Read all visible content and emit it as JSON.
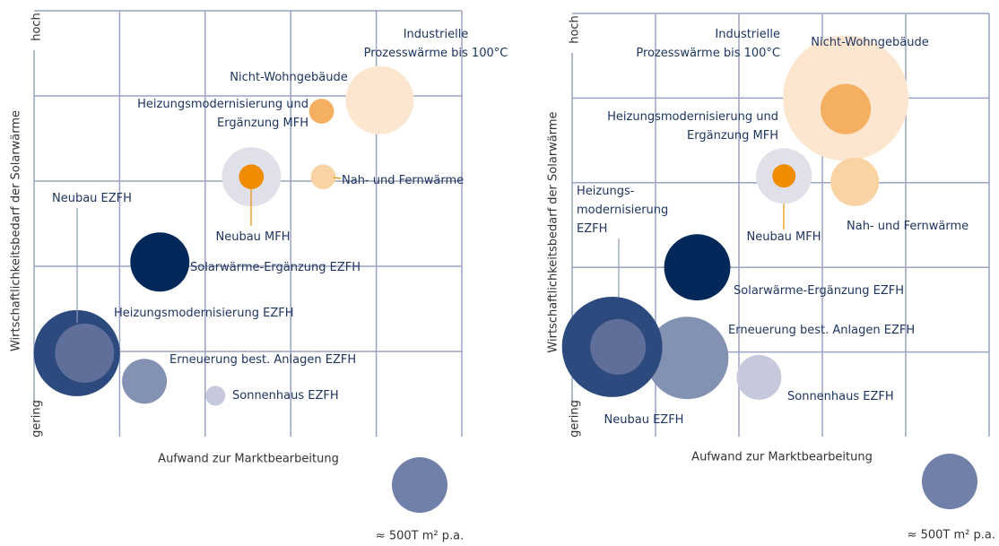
{
  "chart_data": [
    {
      "type": "bubble",
      "x_label": "Aufwand zur Marktbearbeitung",
      "y_label": "Wirtschaftlichkeitsbedarf der Solarwärme",
      "y_high": "hoch",
      "y_low": "gering",
      "xlim": [
        0,
        5
      ],
      "ylim": [
        0,
        5
      ],
      "grid": true,
      "size_legend": {
        "value": 500,
        "label": "≈ 500T m² p.a.",
        "color": "#7080a8"
      },
      "points": [
        {
          "name": "Industrielle Prozesswärme bis 100°C",
          "color": "#fde6cf",
          "x": 4.04,
          "y": 3.95,
          "size": 750
        },
        {
          "name": "Nicht-Wohngebäude",
          "color": "#f4b060",
          "x": 3.36,
          "y": 3.82,
          "size": 100
        },
        {
          "name": "Heizungsmodernisierung und Ergänzung MFH",
          "color": "#dfe0ea",
          "x": 2.54,
          "y": 3.05,
          "size": 565
        },
        {
          "name": "Neubau MFH",
          "color": "#ef8c00",
          "x": 2.54,
          "y": 3.05,
          "size": 100
        },
        {
          "name": "Nah- und Fernwärme",
          "color": "#fad3a4",
          "x": 3.38,
          "y": 3.05,
          "size": 100
        },
        {
          "name": "Solarwärme-Ergänzung EZFH",
          "color": "#002858",
          "x": 1.47,
          "y": 2.05,
          "size": 565
        },
        {
          "name": "Erneuerung best. Anlagen EZFH",
          "color": "#8391b2",
          "x": 1.29,
          "y": 0.65,
          "size": 325
        },
        {
          "name": "Sonnenhaus EZFH",
          "color": "#c6c8db",
          "x": 2.12,
          "y": 0.48,
          "size": 63
        },
        {
          "name": "Neubau EZFH",
          "color": "#2c4a7e",
          "x": 0.5,
          "y": 0.98,
          "size": 1200
        },
        {
          "name": "Heizungsmodernisierung EZFH",
          "color": "#5f6f99",
          "x": 0.59,
          "y": 0.98,
          "size": 565
        }
      ]
    },
    {
      "type": "bubble",
      "x_label": "Aufwand zur Marktbearbeitung",
      "y_label": "Wirtschaftlichkeitsbedarf der Solarwärme",
      "y_high": "hoch",
      "y_low": "gering",
      "xlim": [
        0,
        5
      ],
      "ylim": [
        0,
        5
      ],
      "grid": true,
      "size_legend": {
        "value": 500,
        "label": "≈ 500T m² p.a.",
        "color": "#7080a8"
      },
      "points": [
        {
          "name": "Industrielle Prozesswärme bis 100°C",
          "color": "#fde6cf",
          "x": 3.28,
          "y": 4.0,
          "size": 2550
        },
        {
          "name": "Nicht-Wohngebäude",
          "color": "#f4b060",
          "x": 3.28,
          "y": 3.87,
          "size": 410
        },
        {
          "name": "Heizungsmodernisierung und Ergänzung MFH",
          "color": "#dfe0ea",
          "x": 2.54,
          "y": 3.08,
          "size": 500
        },
        {
          "name": "Neubau MFH",
          "color": "#ef8c00",
          "x": 2.54,
          "y": 3.08,
          "size": 88
        },
        {
          "name": "Nah- und Fernwärme",
          "color": "#fad3a4",
          "x": 3.39,
          "y": 3.01,
          "size": 380
        },
        {
          "name": "Solarwärme-Ergänzung EZFH",
          "color": "#002858",
          "x": 1.5,
          "y": 2.0,
          "size": 710
        },
        {
          "name": "Erneuerung best. Anlagen EZFH",
          "color": "#8391b2",
          "x": 1.38,
          "y": 0.93,
          "size": 1100
        },
        {
          "name": "Sonnenhaus EZFH",
          "color": "#c6c8db",
          "x": 2.24,
          "y": 0.7,
          "size": 325
        },
        {
          "name": "Neubau EZFH",
          "color": "#2c4a7e",
          "x": 0.48,
          "y": 1.06,
          "size": 1630
        },
        {
          "name": "Heizungs- modernisierung EZFH",
          "color": "#5f6f99",
          "x": 0.55,
          "y": 1.06,
          "size": 500
        }
      ]
    }
  ]
}
